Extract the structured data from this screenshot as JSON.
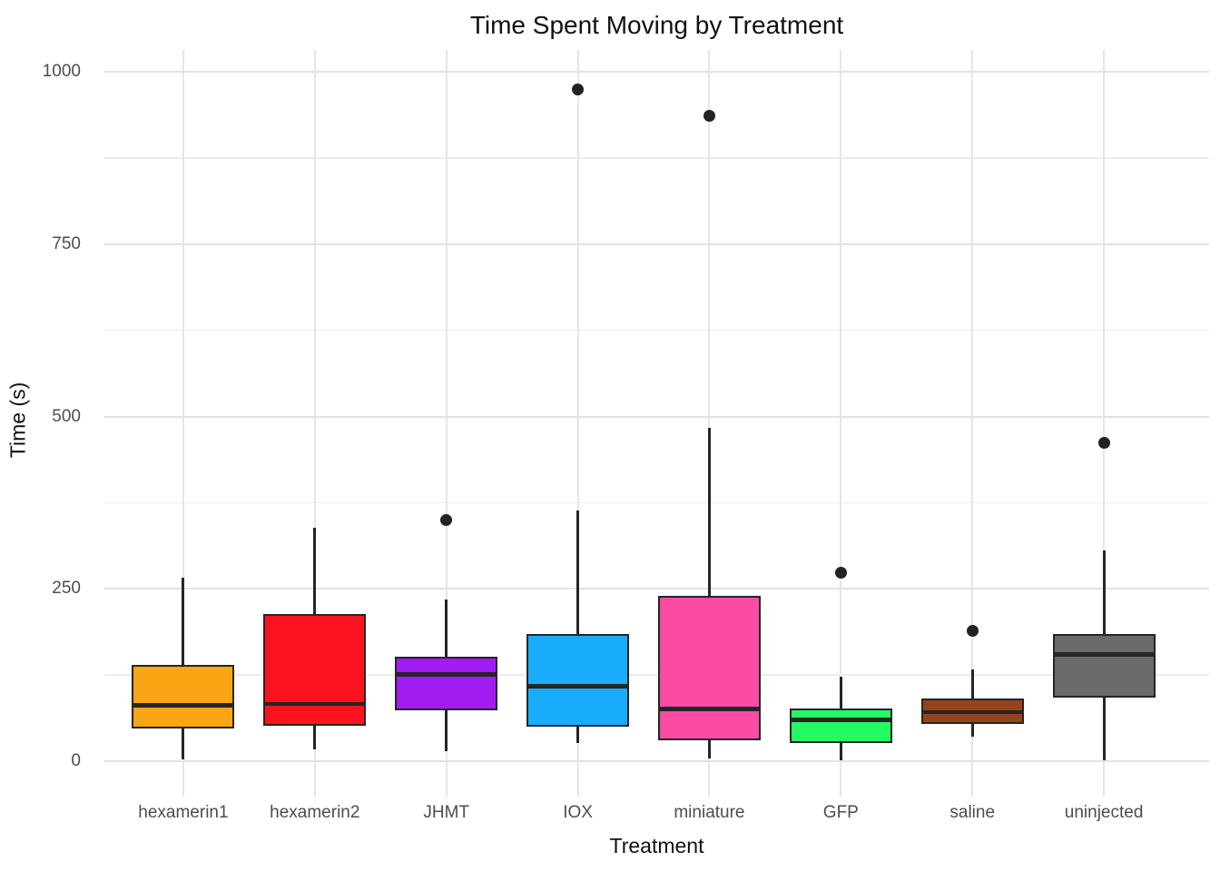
{
  "chart_data": {
    "type": "boxplot",
    "title": "Time Spent Moving by Treatment",
    "xlabel": "Treatment",
    "ylabel": "Time (s)",
    "ylim": [
      0,
      1000
    ],
    "yticks": [
      0,
      250,
      500,
      750,
      1000
    ],
    "minor_gridlines": [
      125,
      375,
      625,
      875
    ],
    "grid": "major and minor horizontal, vertical at categories",
    "legend": "none",
    "categories": [
      "hexamerin1",
      "hexamerin2",
      "JHMT",
      "IOX",
      "miniature",
      "GFP",
      "saline",
      "uninjected"
    ],
    "series": [
      {
        "label": "hexamerin1",
        "color": "#FAA513",
        "min": 3,
        "q1": 48,
        "median": 81,
        "q3": 139,
        "max": 266,
        "outliers": []
      },
      {
        "label": "hexamerin2",
        "color": "#FB141F",
        "min": 17,
        "q1": 52,
        "median": 83,
        "q3": 213,
        "max": 339,
        "outliers": []
      },
      {
        "label": "JHMT",
        "color": "#A11CF0",
        "min": 15,
        "q1": 74,
        "median": 126,
        "q3": 151,
        "max": 235,
        "outliers": [
          350
        ]
      },
      {
        "label": "IOX",
        "color": "#1AACFC",
        "min": 26,
        "q1": 50,
        "median": 109,
        "q3": 184,
        "max": 363,
        "outliers": [
          974
        ]
      },
      {
        "label": "miniature",
        "color": "#FB4CA5",
        "min": 4,
        "q1": 30,
        "median": 76,
        "q3": 240,
        "max": 484,
        "outliers": [
          936
        ]
      },
      {
        "label": "GFP",
        "color": "#24FB62",
        "min": 1,
        "q1": 26,
        "median": 60,
        "q3": 77,
        "max": 123,
        "outliers": [
          273
        ]
      },
      {
        "label": "saline",
        "color": "#96431D",
        "min": 35,
        "q1": 54,
        "median": 71,
        "q3": 91,
        "max": 133,
        "outliers": [
          189
        ]
      },
      {
        "label": "uninjected",
        "color": "#6A6A6A",
        "min": 1,
        "q1": 92,
        "median": 155,
        "q3": 184,
        "max": 306,
        "outliers": [
          462
        ]
      }
    ],
    "colors": {
      "box_border": "#252525",
      "median_line": "#252525",
      "outlier_point": "#222222",
      "major_gridline": "#e2e2e2",
      "minor_gridline": "#ececec",
      "tick_label": "#4d4d4d",
      "title_text": "#111111",
      "background": "#ffffff"
    }
  }
}
